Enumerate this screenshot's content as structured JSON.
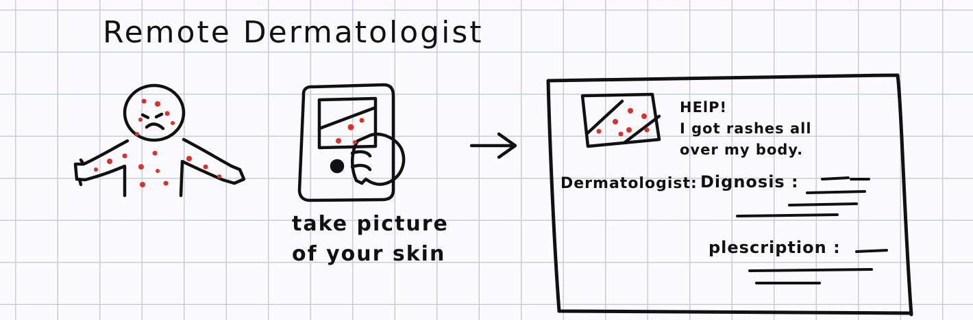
{
  "title": "Remote Dermatologist",
  "step2": {
    "caption_line1": "take picture",
    "caption_line2": "of your skin"
  },
  "screen": {
    "message_line1": "HElP!",
    "message_line2": "I got rashes all",
    "message_line3": "over my body.",
    "dermatologist_label": "Dermatologist:",
    "diagnosis_label": "Dignosis :",
    "prescription_label": "plescription :"
  },
  "colors": {
    "ink": "#111111",
    "rash": "#d8322b",
    "grid": "#c9cddb"
  }
}
